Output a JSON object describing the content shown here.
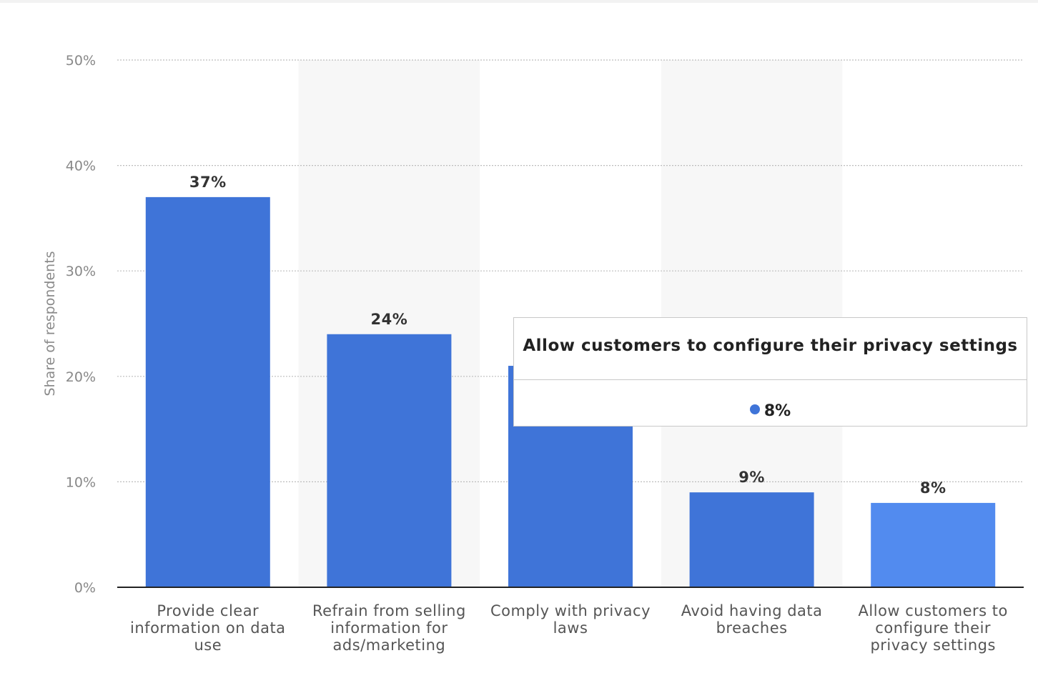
{
  "chart_data": {
    "type": "bar",
    "ylabel": "Share of respondents",
    "ylim": [
      0,
      50
    ],
    "y_ticks": [
      "0%",
      "10%",
      "20%",
      "30%",
      "40%",
      "50%"
    ],
    "y_tick_values": [
      0,
      10,
      20,
      30,
      40,
      50
    ],
    "categories": [
      "Provide clear information on data use",
      "Refrain from selling information for ads/marketing",
      "Comply with privacy laws",
      "Avoid having data breaches",
      "Allow customers to configure their privacy settings"
    ],
    "category_lines": [
      [
        "Provide clear",
        "information on data",
        "use"
      ],
      [
        "Refrain from selling",
        "information for",
        "ads/marketing"
      ],
      [
        "Comply with privacy",
        "laws"
      ],
      [
        "Avoid having data",
        "breaches"
      ],
      [
        "Allow customers to",
        "configure their",
        "privacy settings"
      ]
    ],
    "values": [
      37,
      24,
      21,
      9,
      8
    ],
    "data_labels": [
      "37%",
      "24%",
      "",
      "9%",
      "8%"
    ],
    "grid": true,
    "bar_color": "#3f74d8",
    "highlight_color": "#528bef",
    "highlight_index": 4,
    "band_color": "#f7f7f7"
  },
  "tooltip": {
    "title": "Allow customers to configure their privacy settings",
    "value": "8%",
    "dot_color": "#3f74d8"
  }
}
